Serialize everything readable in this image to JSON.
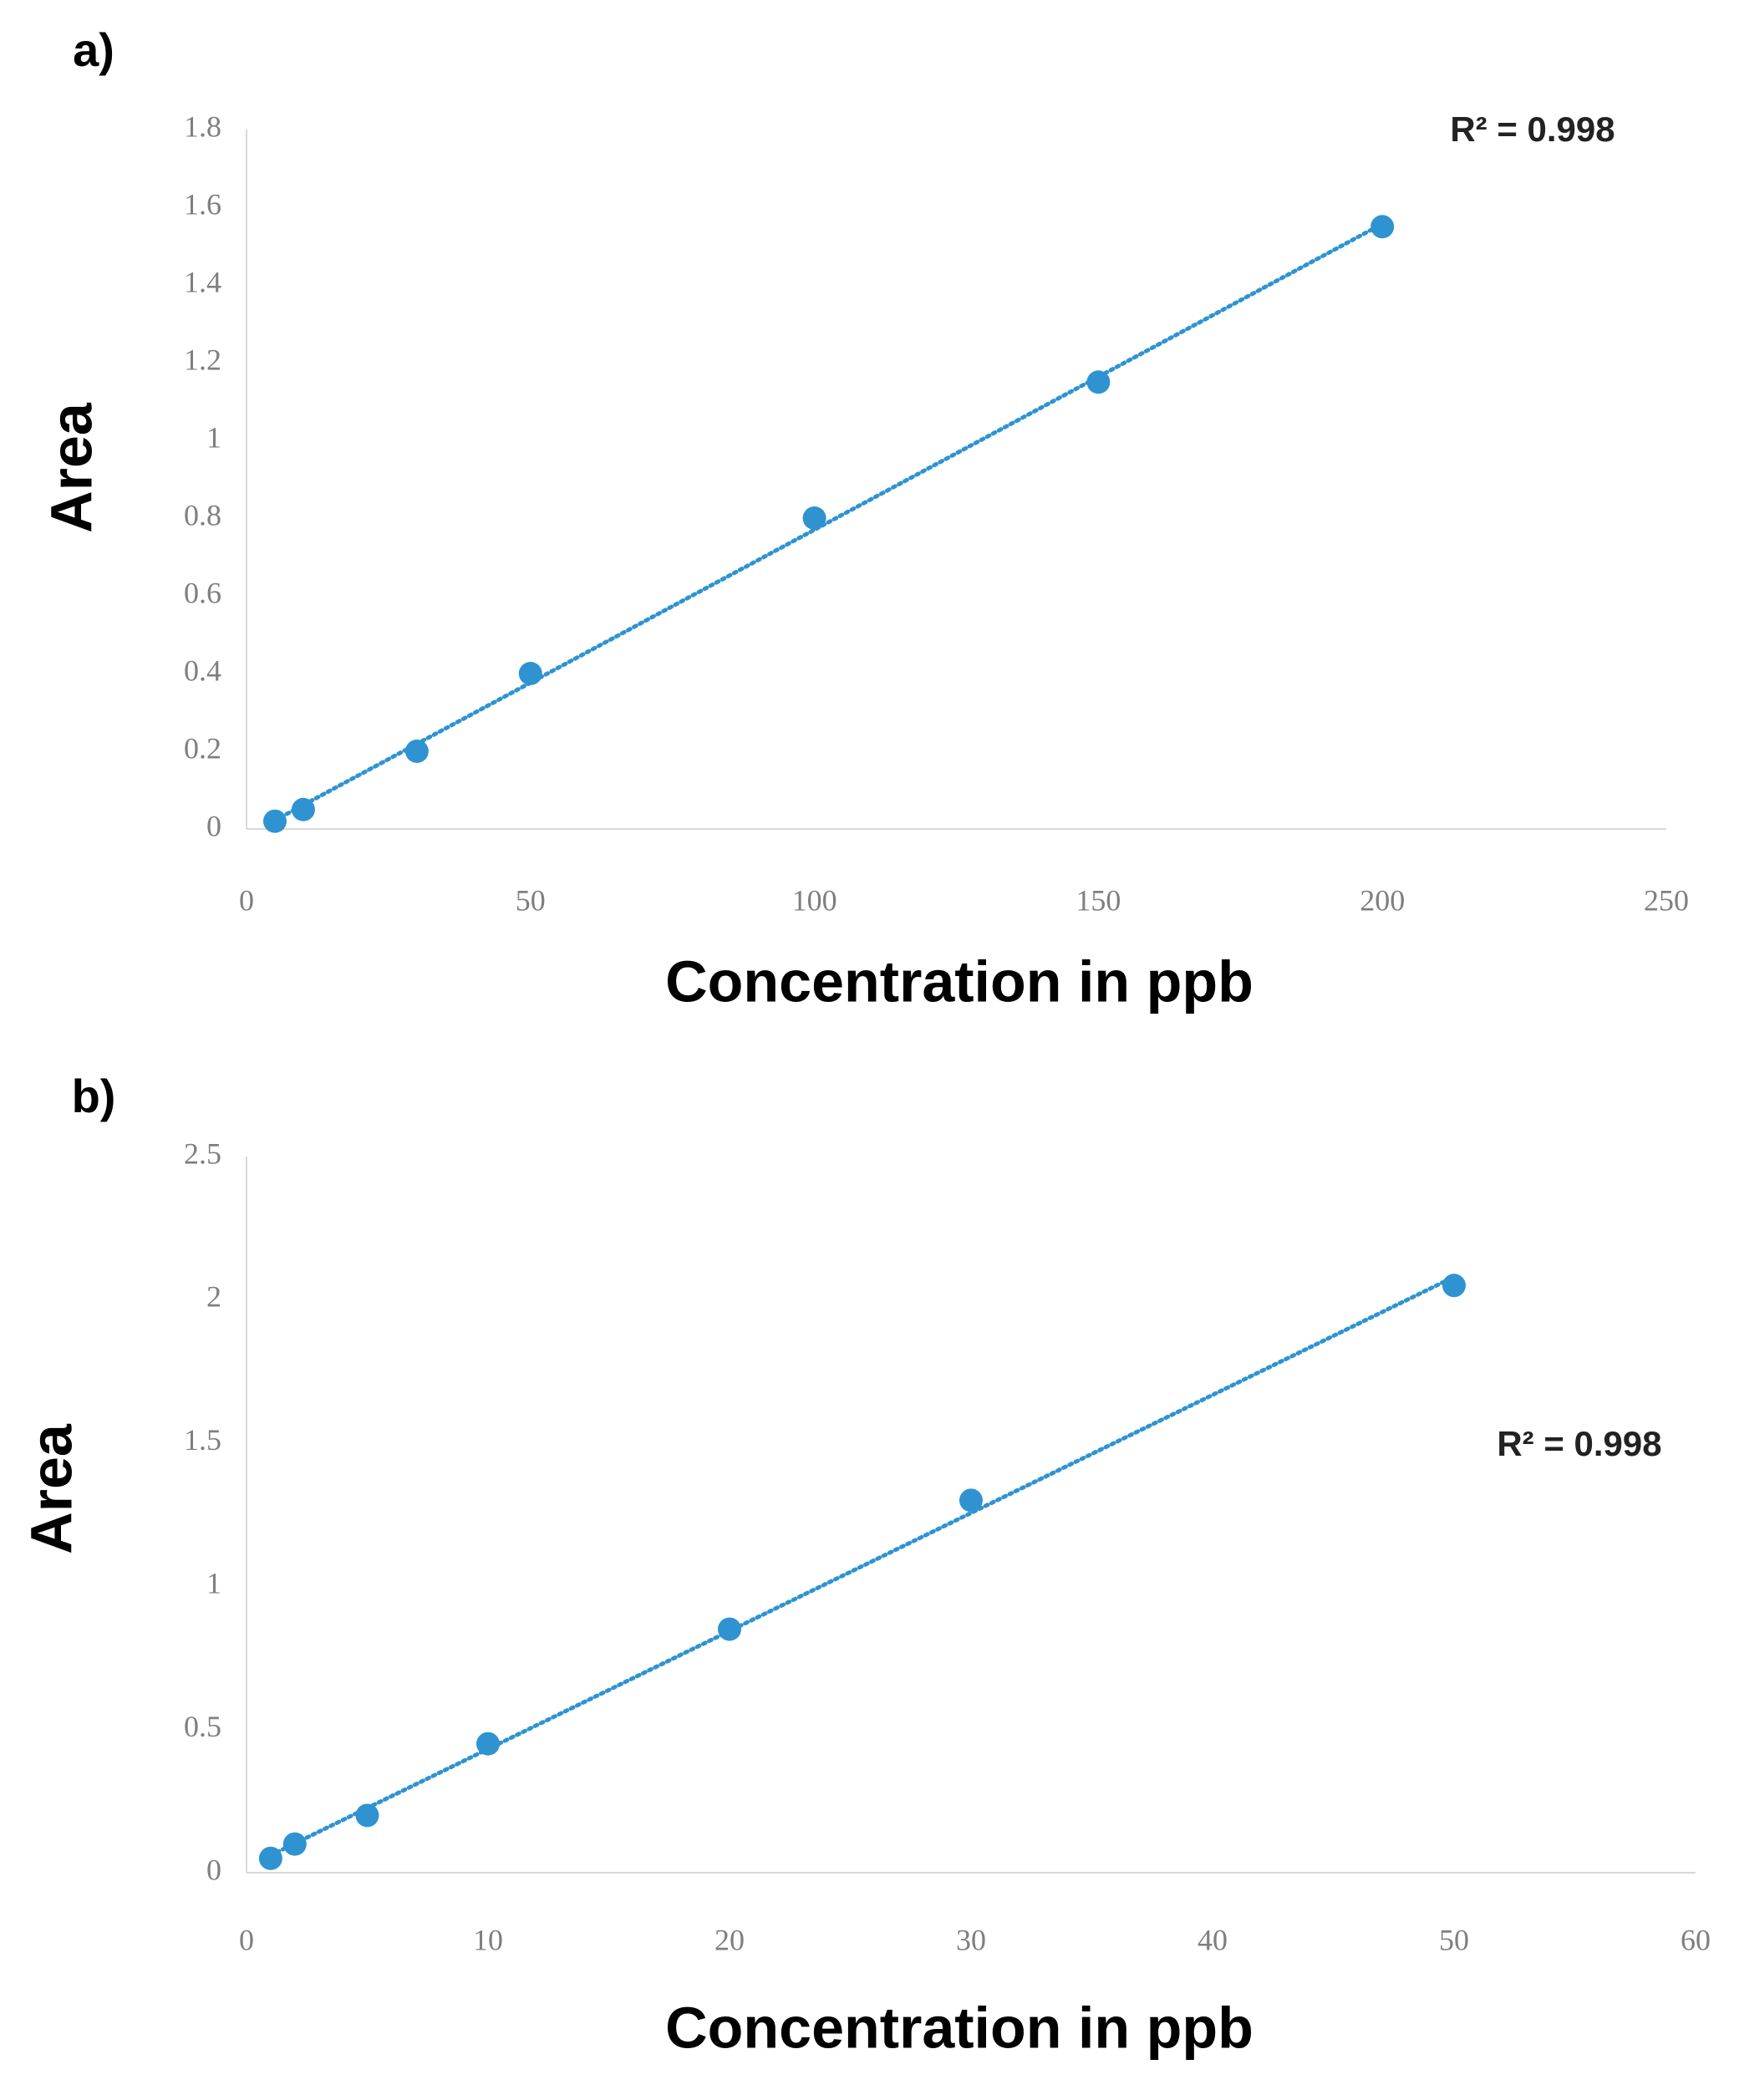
{
  "chart_data": [
    {
      "type": "scatter",
      "panel_label": "a)",
      "x_label": "Concentration in ppb",
      "y_label": "Area",
      "annotation": "R² = 0.998",
      "trendline": "linear",
      "color": "#2f93d1",
      "grid": false,
      "x": [
        5,
        10,
        30,
        50,
        100,
        150,
        200
      ],
      "values": [
        0.02,
        0.05,
        0.2,
        0.4,
        0.8,
        1.15,
        1.55
      ],
      "xlim": [
        0,
        250
      ],
      "xticks": [
        0,
        50,
        100,
        150,
        200,
        250
      ],
      "ylim": [
        0,
        1.8
      ],
      "yticks": [
        0,
        0.2,
        0.4,
        0.6,
        0.8,
        1,
        1.2,
        1.4,
        1.6,
        1.8
      ]
    },
    {
      "type": "scatter",
      "panel_label": "b)",
      "x_label": "Concentration in ppb",
      "y_label": "Area",
      "annotation": "R² = 0.998",
      "trendline": "linear",
      "color": "#2f93d1",
      "grid": false,
      "x": [
        1,
        2,
        5,
        10,
        20,
        30,
        50
      ],
      "values": [
        0.05,
        0.1,
        0.2,
        0.45,
        0.85,
        1.3,
        2.05
      ],
      "xlim": [
        0,
        60
      ],
      "xticks": [
        0,
        10,
        20,
        30,
        40,
        50,
        60
      ],
      "ylim": [
        0,
        2.5
      ],
      "yticks": [
        0,
        0.5,
        1,
        1.5,
        2,
        2.5
      ]
    }
  ]
}
